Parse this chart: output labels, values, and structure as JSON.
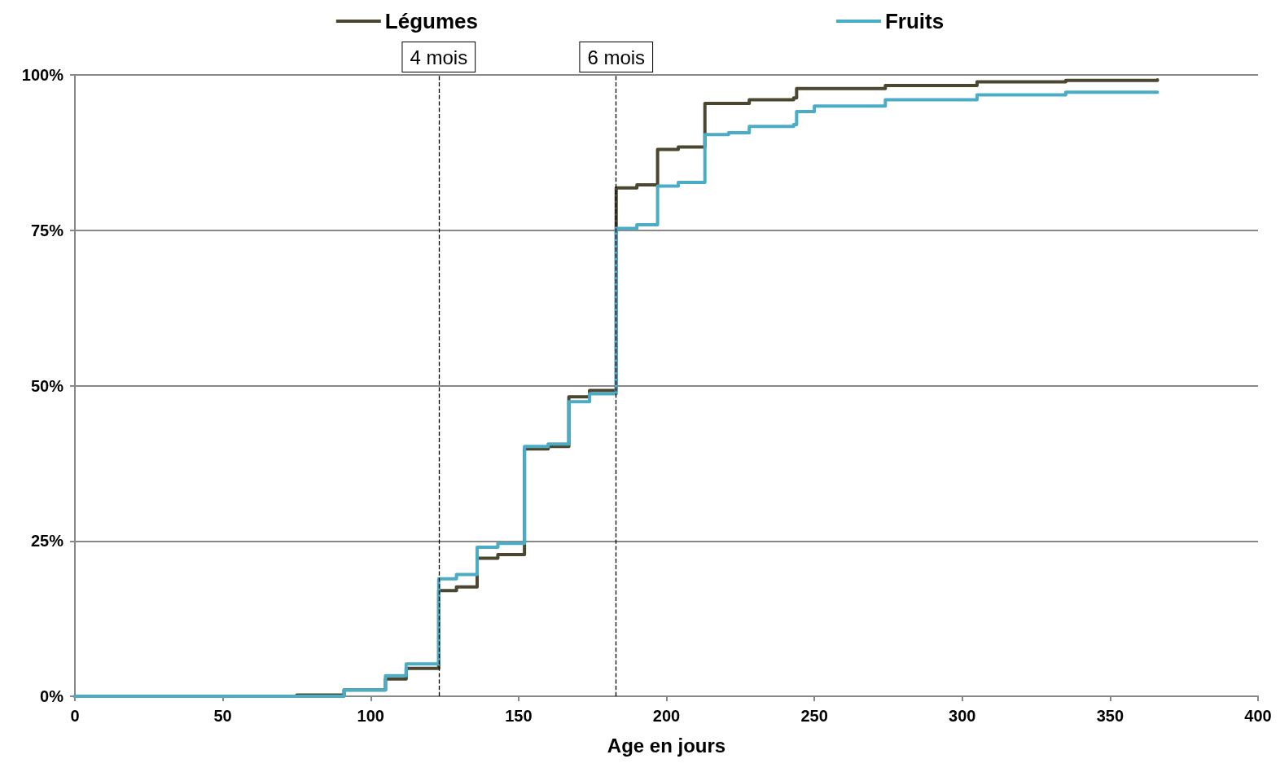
{
  "chart_data": {
    "type": "step",
    "xlabel": "Age en jours",
    "legend": "top",
    "grid": "y",
    "marker": "none",
    "line_style": "solid",
    "xlim": [
      0,
      400
    ],
    "xticks": [
      0,
      50,
      100,
      150,
      200,
      250,
      300,
      350,
      400
    ],
    "ylim": [
      0,
      100
    ],
    "yticks": [
      {
        "value": 0,
        "label": "0%"
      },
      {
        "value": 25,
        "label": "25%"
      },
      {
        "value": 50,
        "label": "50%"
      },
      {
        "value": 75,
        "label": "75%"
      },
      {
        "value": 100,
        "label": "100%"
      }
    ],
    "ref_lines": [
      {
        "axis": "x",
        "value": 123,
        "label": "4 mois",
        "line_style": "dashed",
        "color": "#000000"
      },
      {
        "axis": "x",
        "value": 183,
        "label": "6 mois",
        "line_style": "dashed",
        "color": "#000000"
      }
    ],
    "series": [
      {
        "name": "Légumes",
        "color": "#4a4630",
        "x": [
          0,
          75,
          91,
          105,
          112,
          123,
          129,
          136,
          143,
          152,
          160,
          167,
          174,
          183,
          190,
          197,
          204,
          213,
          228,
          243,
          244,
          274,
          305,
          335,
          366
        ],
        "values": [
          0,
          0.2,
          1.0,
          2.8,
          4.5,
          17.0,
          17.6,
          22.2,
          22.8,
          39.8,
          40.2,
          48.2,
          49.2,
          81.8,
          82.3,
          88.0,
          88.4,
          95.4,
          96.0,
          96.3,
          97.8,
          98.3,
          98.9,
          99.1,
          99.2
        ]
      },
      {
        "name": "Fruits",
        "color": "#4bacc6",
        "x": [
          0,
          91,
          105,
          112,
          123,
          129,
          136,
          143,
          152,
          160,
          167,
          174,
          183,
          190,
          197,
          204,
          213,
          221,
          228,
          243,
          244,
          250,
          274,
          305,
          335,
          366
        ],
        "values": [
          0,
          1.0,
          3.3,
          5.2,
          18.9,
          19.6,
          24.0,
          24.6,
          40.2,
          40.6,
          47.4,
          48.7,
          75.3,
          75.9,
          82.1,
          82.7,
          90.4,
          90.7,
          91.7,
          92.0,
          94.1,
          95.0,
          96.0,
          96.8,
          97.2,
          97.2
        ]
      }
    ]
  }
}
